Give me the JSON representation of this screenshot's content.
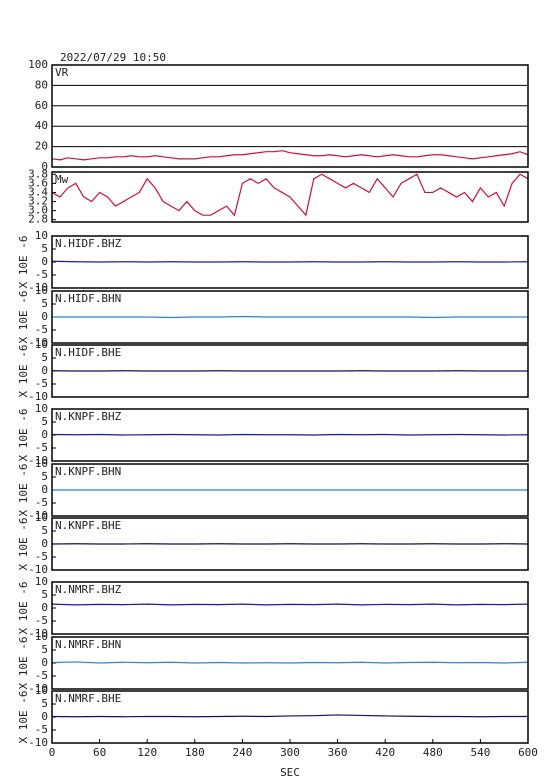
{
  "chart_data": [
    {
      "type": "line",
      "title": "2022/07/29 10:50",
      "label": "VR",
      "x": [
        0,
        10,
        20,
        30,
        40,
        50,
        60,
        70,
        80,
        90,
        100,
        110,
        120,
        130,
        140,
        150,
        160,
        170,
        180,
        190,
        200,
        210,
        220,
        230,
        240,
        250,
        260,
        270,
        280,
        290,
        300,
        310,
        320,
        330,
        340,
        350,
        360,
        370,
        380,
        390,
        400,
        410,
        420,
        430,
        440,
        450,
        460,
        470,
        480,
        490,
        500,
        510,
        520,
        530,
        540,
        550,
        560,
        570,
        580,
        590,
        600
      ],
      "series": [
        {
          "name": "VR",
          "color": "#d0103a",
          "values": [
            8,
            7,
            9,
            8,
            7,
            8,
            9,
            9,
            10,
            10,
            11,
            10,
            10,
            11,
            10,
            9,
            8,
            8,
            8,
            9,
            10,
            10,
            11,
            12,
            12,
            13,
            14,
            15,
            15,
            16,
            14,
            13,
            12,
            11,
            11,
            12,
            11,
            10,
            11,
            12,
            11,
            10,
            11,
            12,
            11,
            10,
            10,
            11,
            12,
            12,
            11,
            10,
            9,
            8,
            9,
            10,
            11,
            12,
            13,
            15,
            12
          ]
        }
      ],
      "xlim": [
        0,
        600
      ],
      "ylim": [
        0,
        100
      ],
      "yticks": [
        0,
        20,
        40,
        60,
        80,
        100
      ],
      "grid": true
    },
    {
      "type": "line",
      "label": "Mw",
      "x": [
        0,
        10,
        20,
        30,
        40,
        50,
        60,
        70,
        80,
        90,
        100,
        110,
        120,
        130,
        140,
        150,
        160,
        170,
        180,
        190,
        200,
        210,
        220,
        230,
        240,
        250,
        260,
        270,
        280,
        290,
        300,
        310,
        320,
        330,
        340,
        350,
        360,
        370,
        380,
        390,
        400,
        410,
        420,
        430,
        440,
        450,
        460,
        470,
        480,
        490,
        500,
        510,
        520,
        530,
        540,
        550,
        560,
        570,
        580,
        590,
        600
      ],
      "series": [
        {
          "name": "Mw",
          "color": "#d0103a",
          "values": [
            3.4,
            3.3,
            3.5,
            3.6,
            3.3,
            3.2,
            3.4,
            3.3,
            3.1,
            3.2,
            3.3,
            3.4,
            3.7,
            3.5,
            3.2,
            3.1,
            3.0,
            3.2,
            3.0,
            2.9,
            2.9,
            3.0,
            3.1,
            2.9,
            3.6,
            3.7,
            3.6,
            3.7,
            3.5,
            3.4,
            3.3,
            3.1,
            2.9,
            3.7,
            3.8,
            3.7,
            3.6,
            3.5,
            3.6,
            3.5,
            3.4,
            3.7,
            3.5,
            3.3,
            3.6,
            3.7,
            3.8,
            3.4,
            3.4,
            3.5,
            3.4,
            3.3,
            3.4,
            3.2,
            3.5,
            3.3,
            3.4,
            3.1,
            3.6,
            3.8,
            3.7
          ]
        }
      ],
      "xlim": [
        0,
        600
      ],
      "ylim": [
        2.75,
        3.85
      ],
      "yticks": [
        2.8,
        {
          "value": 3,
          "label": "3.0"
        },
        3.2,
        3.4,
        3.6,
        3.8
      ],
      "grid": false
    },
    {
      "type": "line",
      "label": "N.HIDF.BHZ",
      "ylabel": "X 10E -6",
      "x": [
        0,
        30,
        60,
        90,
        120,
        150,
        180,
        210,
        240,
        270,
        300,
        330,
        360,
        390,
        420,
        450,
        480,
        510,
        540,
        570,
        600
      ],
      "series": [
        {
          "name": "N.HIDF.BHZ",
          "color": "#1a1aa8",
          "values": [
            0.3,
            0.1,
            0,
            0.1,
            0,
            0.1,
            0,
            0,
            0.1,
            0,
            0,
            0.1,
            0,
            0,
            0.1,
            0,
            0,
            0.1,
            0,
            0,
            0.1
          ]
        }
      ],
      "xlim": [
        0,
        600
      ],
      "ylim": [
        -10,
        10
      ],
      "yticks": [
        -10,
        -5,
        0,
        5,
        10
      ],
      "grid": false
    },
    {
      "type": "line",
      "label": "N.HIDF.BHN",
      "ylabel": "X 10E -6",
      "x": [
        0,
        30,
        60,
        90,
        120,
        150,
        180,
        210,
        240,
        270,
        300,
        330,
        360,
        390,
        420,
        450,
        480,
        510,
        540,
        570,
        600
      ],
      "series": [
        {
          "name": "N.HIDF.BHN",
          "color": "#2a86d8",
          "values": [
            0,
            0,
            0,
            0,
            0,
            -0.2,
            0,
            0,
            0.2,
            0,
            0,
            0,
            0,
            0,
            0,
            0,
            -0.2,
            0,
            0,
            0,
            0
          ]
        }
      ],
      "xlim": [
        0,
        600
      ],
      "ylim": [
        -10,
        10
      ],
      "yticks": [
        -10,
        -5,
        0,
        5,
        10
      ],
      "grid": false
    },
    {
      "type": "line",
      "label": "N.HIDF.BHE",
      "ylabel": "X 10E -6",
      "x": [
        0,
        30,
        60,
        90,
        120,
        150,
        180,
        210,
        240,
        270,
        300,
        330,
        360,
        390,
        420,
        450,
        480,
        510,
        540,
        570,
        600
      ],
      "series": [
        {
          "name": "N.HIDF.BHE",
          "color": "#101068",
          "values": [
            0.1,
            0,
            0,
            0.1,
            0,
            0,
            0,
            0.1,
            0,
            0,
            0,
            0,
            0,
            0.1,
            0,
            0,
            0,
            0.1,
            0,
            0,
            0
          ]
        }
      ],
      "xlim": [
        0,
        600
      ],
      "ylim": [
        -10,
        10
      ],
      "yticks": [
        -10,
        -5,
        0,
        5,
        10
      ],
      "grid": false
    },
    {
      "type": "line",
      "label": "N.KNPF.BHZ",
      "ylabel": "X 10E -6",
      "x": [
        0,
        30,
        60,
        90,
        120,
        150,
        180,
        210,
        240,
        270,
        300,
        330,
        360,
        390,
        420,
        450,
        480,
        510,
        540,
        570,
        600
      ],
      "series": [
        {
          "name": "N.KNPF.BHZ",
          "color": "#1a1aa8",
          "values": [
            0.2,
            0.1,
            0.2,
            0,
            0.1,
            0.2,
            0.1,
            0,
            0.2,
            0.1,
            0.1,
            0,
            0.2,
            0.1,
            0.2,
            0,
            0.1,
            0.2,
            0.1,
            0,
            0.1
          ]
        }
      ],
      "xlim": [
        0,
        600
      ],
      "ylim": [
        -10,
        10
      ],
      "yticks": [
        -10,
        -5,
        0,
        5,
        10
      ],
      "grid": false
    },
    {
      "type": "line",
      "label": "N.KNPF.BHN",
      "ylabel": "X 10E -6",
      "x": [
        0,
        30,
        60,
        90,
        120,
        150,
        180,
        210,
        240,
        270,
        300,
        330,
        360,
        390,
        420,
        450,
        480,
        510,
        540,
        570,
        600
      ],
      "series": [
        {
          "name": "N.KNPF.BHN",
          "color": "#2a86d8",
          "values": [
            0,
            0,
            0,
            0,
            0,
            0,
            0,
            0,
            0,
            0,
            0,
            0,
            0,
            0,
            0,
            0,
            0,
            0,
            0,
            0,
            0
          ]
        }
      ],
      "xlim": [
        0,
        600
      ],
      "ylim": [
        -10,
        10
      ],
      "yticks": [
        -10,
        -5,
        0,
        5,
        10
      ],
      "grid": false
    },
    {
      "type": "line",
      "label": "N.KNPF.BHE",
      "ylabel": "X 10E -6",
      "x": [
        0,
        30,
        60,
        90,
        120,
        150,
        180,
        210,
        240,
        270,
        300,
        330,
        360,
        390,
        420,
        450,
        480,
        510,
        540,
        570,
        600
      ],
      "series": [
        {
          "name": "N.KNPF.BHE",
          "color": "#101068",
          "values": [
            0,
            0.1,
            0,
            0,
            0.1,
            0,
            0,
            0.1,
            0,
            0,
            0.1,
            0,
            0,
            0.1,
            0,
            0,
            0.1,
            0,
            0,
            0.1,
            0
          ]
        }
      ],
      "xlim": [
        0,
        600
      ],
      "ylim": [
        -10,
        10
      ],
      "yticks": [
        -10,
        -5,
        0,
        5,
        10
      ],
      "grid": false
    },
    {
      "type": "line",
      "label": "N.NMRF.BHZ",
      "ylabel": "X 10E -6",
      "x": [
        0,
        30,
        60,
        90,
        120,
        150,
        180,
        210,
        240,
        270,
        300,
        330,
        360,
        390,
        420,
        450,
        480,
        510,
        540,
        570,
        600
      ],
      "series": [
        {
          "name": "N.NMRF.BHZ",
          "color": "#1a1aa8",
          "values": [
            1.5,
            1.2,
            1.4,
            1.3,
            1.5,
            1.2,
            1.4,
            1.3,
            1.5,
            1.2,
            1.4,
            1.3,
            1.5,
            1.2,
            1.4,
            1.3,
            1.5,
            1.2,
            1.4,
            1.3,
            1.5
          ]
        }
      ],
      "xlim": [
        0,
        600
      ],
      "ylim": [
        -10,
        10
      ],
      "yticks": [
        -10,
        -5,
        0,
        5,
        10
      ],
      "grid": false
    },
    {
      "type": "line",
      "label": "N.NMRF.BHN",
      "ylabel": "X 10E -6",
      "x": [
        0,
        30,
        60,
        90,
        120,
        150,
        180,
        210,
        240,
        270,
        300,
        330,
        360,
        390,
        420,
        450,
        480,
        510,
        540,
        570,
        600
      ],
      "series": [
        {
          "name": "N.NMRF.BHN",
          "color": "#2a86d8",
          "values": [
            0.2,
            0.4,
            0,
            0.3,
            0.1,
            0.3,
            0,
            0.2,
            0,
            0.1,
            0,
            0.2,
            0.1,
            0.3,
            0,
            0.2,
            0.3,
            0.1,
            0.2,
            0,
            0.3
          ]
        }
      ],
      "xlim": [
        0,
        600
      ],
      "ylim": [
        -10,
        10
      ],
      "yticks": [
        -10,
        -5,
        0,
        5,
        10
      ],
      "grid": false
    },
    {
      "type": "line",
      "label": "N.NMRF.BHE",
      "ylabel": "X 10E -6",
      "xlabel": "SEC",
      "x": [
        0,
        30,
        60,
        90,
        120,
        150,
        180,
        210,
        240,
        270,
        300,
        330,
        360,
        390,
        420,
        450,
        480,
        510,
        540,
        570,
        600
      ],
      "series": [
        {
          "name": "N.NMRF.BHE",
          "color": "#101068",
          "values": [
            0.2,
            0.1,
            0.2,
            0.1,
            0.2,
            0.2,
            0.1,
            0.2,
            0.3,
            0.2,
            0.4,
            0.5,
            0.8,
            0.6,
            0.4,
            0.3,
            0.2,
            0.2,
            0.1,
            0.2,
            0.2
          ]
        }
      ],
      "xlim": [
        0,
        600
      ],
      "ylim": [
        -10,
        10
      ],
      "xticks": [
        0,
        60,
        120,
        180,
        240,
        300,
        360,
        420,
        480,
        540,
        600
      ],
      "yticks": [
        -10,
        -5,
        0,
        5,
        10
      ],
      "grid": false
    }
  ]
}
